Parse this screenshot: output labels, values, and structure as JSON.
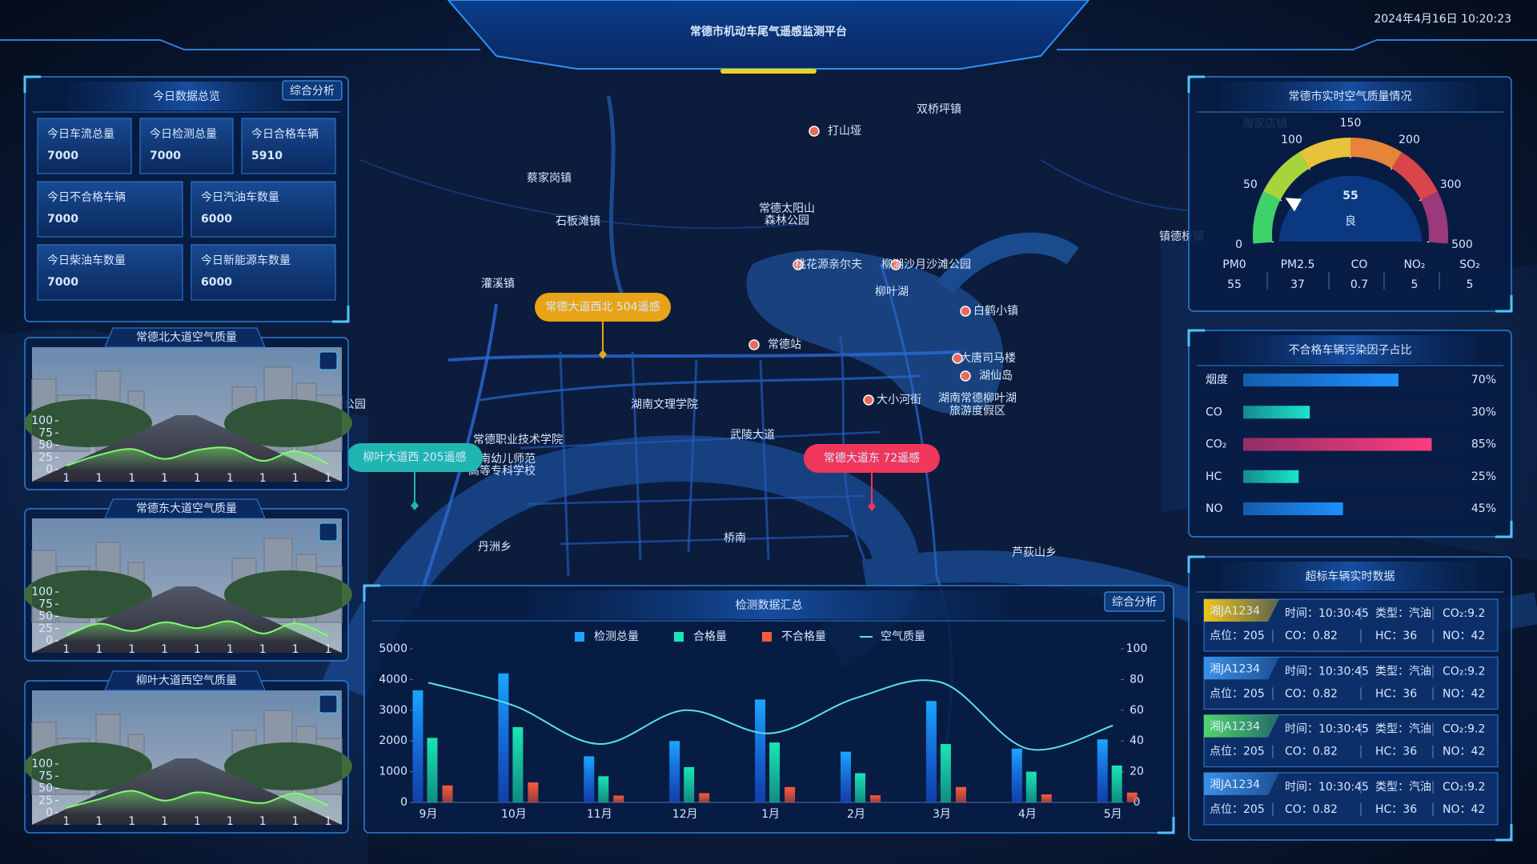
{
  "header": {
    "title": "常德市机动车尾气遥感监测平台",
    "datetime": "2024年4月16日 10:20:23"
  },
  "overview": {
    "title": "今日数据总览",
    "button": "综合分析",
    "stats": [
      {
        "label": "今日车流总量",
        "value": "7000",
        "color": "#ffd21f"
      },
      {
        "label": "今日检测总量",
        "value": "7000",
        "color": "#ffd21f"
      },
      {
        "label": "今日合格车辆",
        "value": "5910",
        "color": "#4ff06e"
      },
      {
        "label": "今日不合格车辆",
        "value": "7000",
        "color": "#ff4d4d"
      },
      {
        "label": "今日汽油车数量",
        "value": "6000",
        "color": "#ffd21f"
      },
      {
        "label": "今日柴油车数量",
        "value": "7000",
        "color": "#b58cff"
      },
      {
        "label": "今日新能源车数量",
        "value": "6000",
        "color": "#35d0ff"
      }
    ]
  },
  "cameras": [
    {
      "title": "常德北大道空气质量",
      "chart": {
        "type": "line",
        "categories": [
          "1",
          "1",
          "1",
          "1",
          "1",
          "1",
          "1",
          "1",
          "1"
        ],
        "values": [
          8,
          30,
          42,
          22,
          40,
          44,
          18,
          38,
          12
        ],
        "color": "#7dff6a",
        "ylim": [
          0,
          100
        ],
        "yticks": [
          0,
          25,
          50,
          75,
          100
        ]
      }
    },
    {
      "title": "常德东大道空气质量",
      "chart": {
        "type": "line",
        "categories": [
          "1",
          "1",
          "1",
          "1",
          "1",
          "1",
          "1",
          "1",
          "1"
        ],
        "values": [
          12,
          35,
          20,
          38,
          26,
          40,
          15,
          36,
          10
        ],
        "color": "#7dff6a",
        "ylim": [
          0,
          100
        ],
        "yticks": [
          0,
          25,
          50,
          75,
          100
        ]
      }
    },
    {
      "title": "柳叶大道西空气质量",
      "chart": {
        "type": "line",
        "categories": [
          "1",
          "1",
          "1",
          "1",
          "1",
          "1",
          "1",
          "1",
          "1"
        ],
        "values": [
          10,
          28,
          45,
          25,
          42,
          30,
          20,
          40,
          15
        ],
        "color": "#7dff6a",
        "ylim": [
          0,
          100
        ],
        "yticks": [
          0,
          25,
          50,
          75,
          100
        ]
      }
    }
  ],
  "map": {
    "labels": [
      "双桥坪镇",
      "打山垭",
      "蔡家岗镇",
      "石板滩镇",
      "常德太阳山",
      "森林公园",
      "桃花源亲尔夫",
      "柳湖沙月沙滩公园",
      "柳叶湖",
      "白鹤小镇",
      "灌溪镇",
      "常德站",
      "大唐司马楼",
      "湖仙岛",
      "大小河街",
      "湖南常德柳叶湖",
      "旅游度假区",
      "湖南文理学院",
      "武陵大道",
      "常德职业技术学院",
      "湖南幼儿师范",
      "高等专科学校",
      "桥南",
      "丹洲乡",
      "芦荻山乡",
      "周家店镇",
      "镇德桥镇",
      "公园"
    ],
    "markers": [
      {
        "label": "常德大道西北 504遥感",
        "color": "#e8a317"
      },
      {
        "label": "柳叶大道西 205遥感",
        "color": "#1fb5b0"
      },
      {
        "label": "常德大道东 72遥感",
        "color": "#f0365a"
      }
    ]
  },
  "air_quality": {
    "title": "常德市实时空气质量情况",
    "gauge": {
      "type": "gauge",
      "value": 55,
      "level": "良",
      "ticks": [
        0,
        50,
        100,
        150,
        200,
        300,
        500
      ],
      "colors": [
        "#3fd26b",
        "#a6d43a",
        "#e8c23a",
        "#e8833a",
        "#d8454a",
        "#9b3a7a"
      ]
    },
    "pollutants": [
      {
        "name": "PM0",
        "value": "55",
        "color": "#4ff06e"
      },
      {
        "name": "PM2.5",
        "value": "37",
        "color": "#ff4d4d"
      },
      {
        "name": "CO",
        "value": "0.7",
        "color": "#4ff06e"
      },
      {
        "name": "NO₂",
        "value": "5",
        "color": "#4ff06e"
      },
      {
        "name": "SO₂",
        "value": "5",
        "color": "#ff4d4d"
      }
    ]
  },
  "pollution_factors": {
    "title": "不合格车辆污染因子占比",
    "chart": {
      "type": "hbar",
      "categories": [
        "烟度",
        "CO",
        "CO₂",
        "HC",
        "NO"
      ],
      "values": [
        70,
        30,
        85,
        25,
        45
      ],
      "value_labels": [
        "70%",
        "30%",
        "85%",
        "25%",
        "45%"
      ],
      "colors": [
        "#1e90ff",
        "#19e6c8",
        "#ff3d7f",
        "#19e6c8",
        "#1e90ff"
      ],
      "xlim": [
        0,
        100
      ]
    }
  },
  "exceed_vehicles": {
    "title": "超标车辆实时数据",
    "rows": [
      {
        "plate": "湘JA1234",
        "tag_color": "#f0c419",
        "time": "时间：10:30:45",
        "type": "类型：汽油",
        "co2": "CO₂:9.2",
        "point": "点位：205",
        "co": "CO：0.82",
        "hc": "HC：36",
        "no": "NO：42"
      },
      {
        "plate": "湘JA1234",
        "tag_color": "#3a8fe8",
        "time": "时间：10:30:45",
        "type": "类型：汽油",
        "co2": "CO₂:9.2",
        "point": "点位：205",
        "co": "CO：0.82",
        "hc": "HC：36",
        "no": "NO：42"
      },
      {
        "plate": "湘JA1234",
        "tag_color": "#4fd66a",
        "time": "时间：10:30:45",
        "type": "类型：汽油",
        "co2": "CO₂:9.2",
        "point": "点位：205",
        "co": "CO：0.82",
        "hc": "HC：36",
        "no": "NO：42"
      },
      {
        "plate": "湘JA1234",
        "tag_color": "#3a8fe8",
        "time": "时间：10:30:45",
        "type": "类型：汽油",
        "co2": "CO₂:9.2",
        "point": "点位：205",
        "co": "CO：0.82",
        "hc": "HC：36",
        "no": "NO：42"
      }
    ]
  },
  "summary": {
    "title": "检测数据汇总",
    "button": "综合分析",
    "chart": {
      "type": "bar_line",
      "categories": [
        "9月",
        "10月",
        "11月",
        "12月",
        "1月",
        "2月",
        "3月",
        "4月",
        "5月"
      ],
      "series": [
        {
          "name": "检测总量",
          "color": "#1aa7ff",
          "values": [
            3650,
            4200,
            1500,
            2000,
            3350,
            1650,
            3300,
            1750,
            2050
          ]
        },
        {
          "name": "合格量",
          "color": "#19e6b4",
          "values": [
            2100,
            2450,
            850,
            1150,
            1950,
            950,
            1900,
            1000,
            1200
          ]
        },
        {
          "name": "不合格量",
          "color": "#ff5a3c",
          "values": [
            550,
            650,
            220,
            300,
            500,
            230,
            500,
            260,
            320
          ]
        },
        {
          "name": "空气质量",
          "color": "#5ae0f0",
          "axis": "y2",
          "values": [
            78,
            63,
            38,
            60,
            45,
            68,
            78,
            35,
            50
          ]
        }
      ],
      "ylim": [
        0,
        5000
      ],
      "yticks": [
        0,
        1000,
        2000,
        3000,
        4000,
        5000
      ],
      "y2lim": [
        0,
        100
      ],
      "y2ticks": [
        0,
        20,
        40,
        60,
        80,
        100
      ]
    }
  }
}
